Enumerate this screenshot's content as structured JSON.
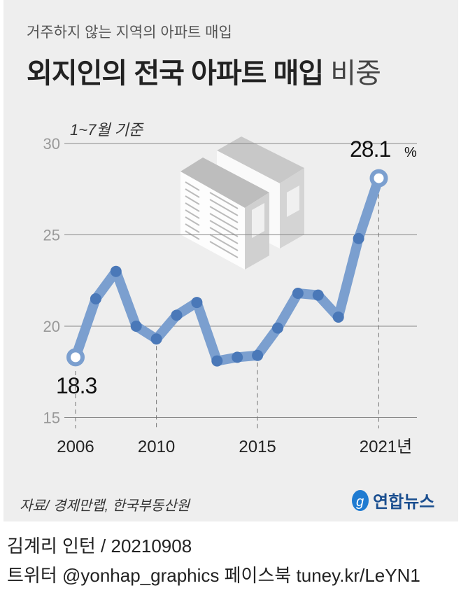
{
  "header": {
    "subtitle": "거주하지 않는 지역의 아파트 매입",
    "title_bold": "외지인의 전국 아파트 매입",
    "title_light": "비중"
  },
  "chart_data": {
    "type": "line",
    "title": "외지인의 전국 아파트 매입 비중",
    "note": "1~7월 기준",
    "xlabel": "",
    "ylabel": "",
    "unit": "%",
    "x": [
      2006,
      2007,
      2008,
      2009,
      2010,
      2011,
      2012,
      2013,
      2014,
      2015,
      2016,
      2017,
      2018,
      2019,
      2020,
      2021
    ],
    "values": [
      18.3,
      21.5,
      23.0,
      20.0,
      19.3,
      20.6,
      21.3,
      18.1,
      18.3,
      18.4,
      19.9,
      21.8,
      21.7,
      20.5,
      24.8,
      28.1
    ],
    "ylim": [
      15,
      30
    ],
    "yticks": [
      "15",
      "20",
      "25",
      "30"
    ],
    "xticks": [
      {
        "year": 2006,
        "label": "2006"
      },
      {
        "year": 2010,
        "label": "2010"
      },
      {
        "year": 2015,
        "label": "2015"
      },
      {
        "year": 2021,
        "label": "2021년"
      }
    ],
    "labels": {
      "start": "18.3",
      "end": "28.1",
      "end_unit": "%"
    },
    "grid": true,
    "line_color": "#3b6fb6"
  },
  "footer": {
    "source": "자료/ 경제만랩, 한국부동산원",
    "logo_text": "연합뉴스",
    "credit": "김계리 인턴 / 20210908",
    "social": "트위터 @yonhap_graphics  페이스북 tuney.kr/LeYN1"
  }
}
